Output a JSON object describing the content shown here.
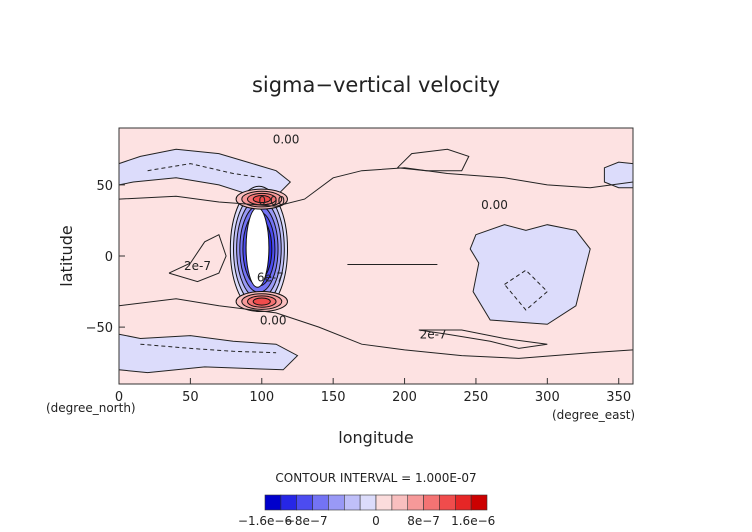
{
  "chart_data": {
    "type": "heatmap",
    "title": "sigma−vertical velocity",
    "xlabel": "longitude",
    "ylabel": "latitude",
    "x_unit": "(degree_east)",
    "y_unit": "(degree_north)",
    "xlim": [
      0,
      360
    ],
    "ylim": [
      -90,
      90
    ],
    "x_ticks": [
      0,
      50,
      100,
      150,
      200,
      250,
      300,
      350
    ],
    "y_ticks": [
      -50,
      0,
      50
    ],
    "x_tick_labels": [
      "0",
      "50",
      "100",
      "150",
      "200",
      "250",
      "300",
      "350"
    ],
    "y_tick_labels": [
      "−50",
      "0",
      "50"
    ],
    "contour_interval_text": "CONTOUR INTERVAL = 1.000E-07",
    "contour_labels": [
      "0.00",
      "0.00",
      "0.00",
      "0.00",
      "2e-7",
      "2e-7",
      "6e-7"
    ],
    "colorbar": {
      "colors": [
        "#0000cc",
        "#2626e6",
        "#4c4cf0",
        "#7373f4",
        "#9999f6",
        "#bfbff9",
        "#dcdcfb",
        "#fbdcdc",
        "#f9bfbf",
        "#f69999",
        "#f47373",
        "#f04c4c",
        "#e62626",
        "#cc0000"
      ],
      "labels": [
        "−1.6e−6",
        "−8e−7",
        "0",
        "8e−7",
        "1.6e−6"
      ]
    },
    "field_colors": {
      "positive": "#fde2e2",
      "negative": "#dcdcfb",
      "contour": "#222222"
    }
  }
}
